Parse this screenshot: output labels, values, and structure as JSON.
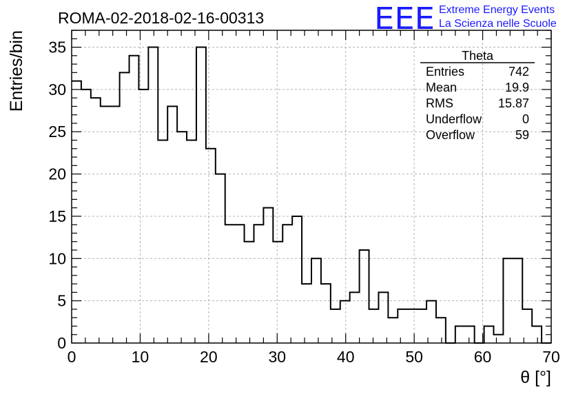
{
  "chart_data": {
    "type": "histogram",
    "title": "ROMA-02-2018-02-16-00313",
    "xlabel": "θ [°]",
    "ylabel": "Entries/bin",
    "xlim": [
      0,
      70
    ],
    "ylim": [
      0,
      37
    ],
    "x_ticks": [
      0,
      10,
      20,
      30,
      40,
      50,
      60,
      70
    ],
    "y_ticks": [
      0,
      5,
      10,
      15,
      20,
      25,
      30,
      35
    ],
    "grid": true,
    "bin_width": 1.4,
    "bin_edges_start": 0,
    "values": [
      31,
      30,
      29,
      28,
      28,
      32,
      34,
      30,
      35,
      24,
      28,
      25,
      24,
      35,
      23,
      20,
      14,
      14,
      12,
      14,
      16,
      12,
      14,
      15,
      7,
      10,
      7,
      4,
      5,
      6,
      11,
      4,
      6,
      3,
      4,
      4,
      4,
      5,
      3,
      0,
      2,
      2,
      0,
      2,
      1,
      10,
      10,
      4,
      2,
      0
    ],
    "stats_box": {
      "title": "Theta",
      "rows": [
        {
          "label": "Entries",
          "value": "742"
        },
        {
          "label": "Mean",
          "value": "19.9"
        },
        {
          "label": "RMS",
          "value": "15.87"
        },
        {
          "label": "Underflow",
          "value": "0"
        },
        {
          "label": "Overflow",
          "value": "59"
        }
      ]
    },
    "logo": {
      "mark": "EEE",
      "line1": "Extreme Energy Events",
      "line2": "La Scienza nelle Scuole",
      "color": "#1a1aff"
    }
  }
}
